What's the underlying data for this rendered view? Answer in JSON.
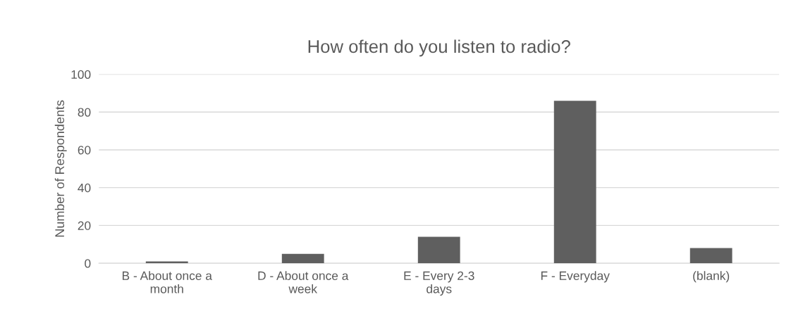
{
  "chart_data": {
    "type": "bar",
    "title": "How often do you listen to radio?",
    "ylabel": "Number of Respondents",
    "categories": [
      "B - About once a month",
      "D - About once a week",
      "E - Every 2-3 days",
      "F - Everyday",
      "(blank)"
    ],
    "values": [
      1,
      5,
      14,
      86,
      8
    ],
    "color": "#5f5f5f",
    "ylim": [
      0,
      100
    ],
    "yticks": [
      0,
      20,
      40,
      60,
      80,
      100
    ],
    "grid": "y",
    "legend": false
  }
}
